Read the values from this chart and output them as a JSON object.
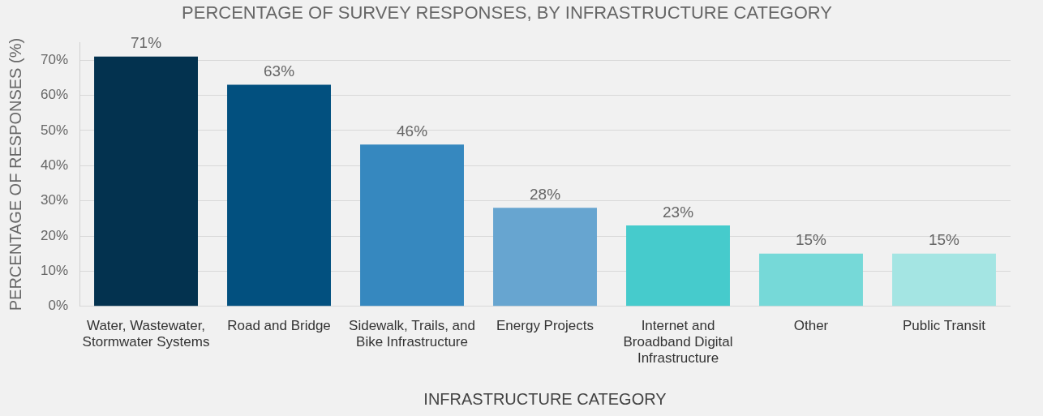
{
  "chart_data": {
    "type": "bar",
    "title": "PERCENTAGE OF SURVEY RESPONSES, BY INFRASTRUCTURE CATEGORY",
    "xlabel": "INFRASTRUCTURE CATEGORY",
    "ylabel": "PERCENTAGE OF RESPONSES (%)",
    "categories": [
      "Water, Wastewater, Stormwater Systems",
      "Road and Bridge",
      "Sidewalk, Trails, and Bike Infrastructure",
      "Energy Projects",
      "Internet and Broadband Digital Infrastructure",
      "Other",
      "Public Transit"
    ],
    "values": [
      71,
      63,
      46,
      28,
      23,
      15,
      15
    ],
    "value_labels": [
      "71%",
      "63%",
      "46%",
      "28%",
      "23%",
      "15%",
      "15%"
    ],
    "colors": [
      "#03324f",
      "#02507f",
      "#3688bf",
      "#67a5d0",
      "#46cbcc",
      "#76d9d8",
      "#a4e5e3"
    ],
    "ylim": [
      0,
      75
    ],
    "yticks": [
      {
        "value": 0,
        "label": "0%"
      },
      {
        "value": 10,
        "label": "10%"
      },
      {
        "value": 20,
        "label": "20%"
      },
      {
        "value": 30,
        "label": "30%"
      },
      {
        "value": 40,
        "label": "40%"
      },
      {
        "value": 50,
        "label": "50%"
      },
      {
        "value": 60,
        "label": "60%"
      },
      {
        "value": 70,
        "label": "70%"
      }
    ],
    "grid": "y",
    "legend": false
  }
}
